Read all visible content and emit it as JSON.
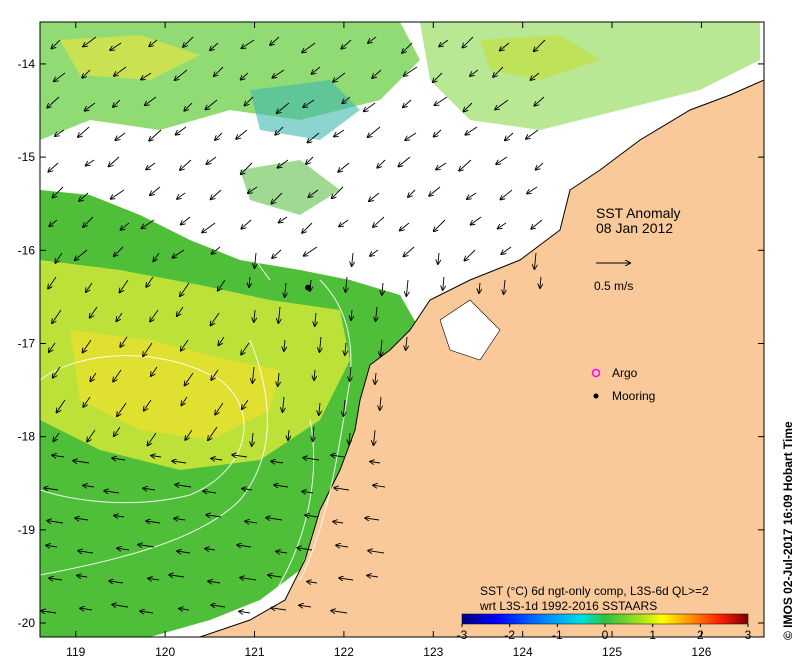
{
  "map": {
    "title": "SST Anomaly",
    "date": "08 Jan 2012",
    "vector_scale": {
      "label": "0.5 m/s",
      "speed_ms": 0.5
    },
    "lon_ticks": [
      "119",
      "120",
      "121",
      "122",
      "123",
      "124",
      "125",
      "126"
    ],
    "lat_ticks": [
      "-14",
      "-15",
      "-16",
      "-17",
      "-18",
      "-19",
      "-20"
    ],
    "lon_range": [
      118.6,
      126.7
    ],
    "lat_range": [
      -20.15,
      -13.55
    ],
    "legend": [
      {
        "label": "Argo",
        "symbol": "circle",
        "color": "#ff00ff"
      },
      {
        "label": "Mooring",
        "symbol": "dot",
        "color": "#000000"
      }
    ],
    "mooring_location": {
      "lon": 121.6,
      "lat": -16.4
    },
    "colorbar": {
      "caption_line1": "SST (°C) 6d ngt-only comp, L3S-6d QL>=2",
      "caption_line2": "wrt L3S-1d 1992-2016 SSTAARS",
      "tick_labels": [
        "-3",
        "-2",
        "-1",
        "0",
        "1",
        "2",
        "3"
      ],
      "min": -3,
      "max": 3,
      "colors": [
        "#00007f",
        "#0000ff",
        "#0080ff",
        "#00ffff",
        "#20c060",
        "#80ff00",
        "#ffff00",
        "#ff8000",
        "#ff0000",
        "#7f0000"
      ]
    },
    "colors": {
      "land": "#f9c99a",
      "coast": "#000000",
      "no_data": "#ffffff",
      "anomaly_near_zero": "#44bb44",
      "anomaly_warm": "#ccee33",
      "contour": "#ffffff"
    },
    "credit": "© IMOS 02-Jul-2017 16:09 Hobart Time"
  }
}
